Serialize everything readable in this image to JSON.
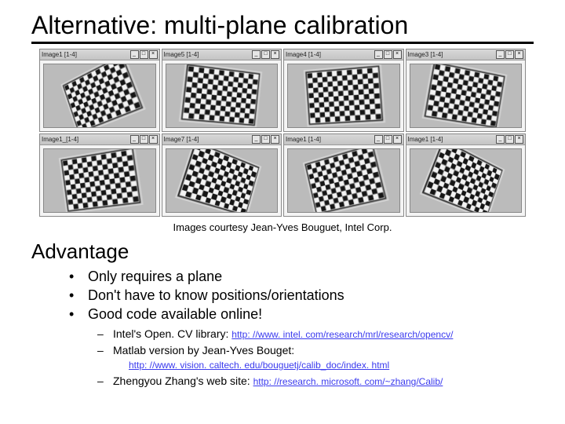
{
  "title": "Alternative:  multi-plane calibration",
  "caption": "Images courtesy Jean-Yves Bouguet, Intel Corp.",
  "subhead": "Advantage",
  "bullets": [
    "Only requires a plane",
    "Don't have to know positions/orientations",
    "Good code available online!"
  ],
  "subs": [
    {
      "text": "Intel's Open. CV library:  ",
      "link": "http: //www. intel. com/research/mrl/research/opencv/"
    },
    {
      "text": "Matlab version by Jean-Yves Bouget:",
      "link": "http: //www. vision. caltech. edu/bouguetj/calib_doc/index. html",
      "break": true
    },
    {
      "text": "Zhengyou Zhang's web site:  ",
      "link": "http: //research. microsoft. com/~zhang/Calib/"
    }
  ],
  "tiles": [
    {
      "label": "Image1 [1-4]",
      "rot": -22,
      "persp": 0.0008,
      "px": -300
    },
    {
      "label": "Image5 [1-4]",
      "rot": 6,
      "persp": 0.0006,
      "px": 200
    },
    {
      "label": "Image4 [1-4]",
      "rot": -4,
      "persp": 0.0005,
      "px": -200
    },
    {
      "label": "Image3 [1-4]",
      "rot": 10,
      "persp": 0.0009,
      "px": 350
    },
    {
      "label": "Image1_[1-4]",
      "rot": -8,
      "persp": 0.0007,
      "px": 250
    },
    {
      "label": "Image7 [1-4]",
      "rot": 18,
      "persp": 0.0006,
      "px": -250
    },
    {
      "label": "Image1 [1-4]",
      "rot": -14,
      "persp": 0.0008,
      "px": 300
    },
    {
      "label": "Image1 [1-4]",
      "rot": 22,
      "persp": 0.0007,
      "px": -300
    }
  ],
  "tile_buttons": [
    "_",
    "□",
    "×"
  ],
  "checker": {
    "cols": 14,
    "rows": 10,
    "dark": "#1a1a1a",
    "light": "#ededed",
    "board_border": "#333333"
  },
  "colors": {
    "link": "#3a3aee"
  }
}
